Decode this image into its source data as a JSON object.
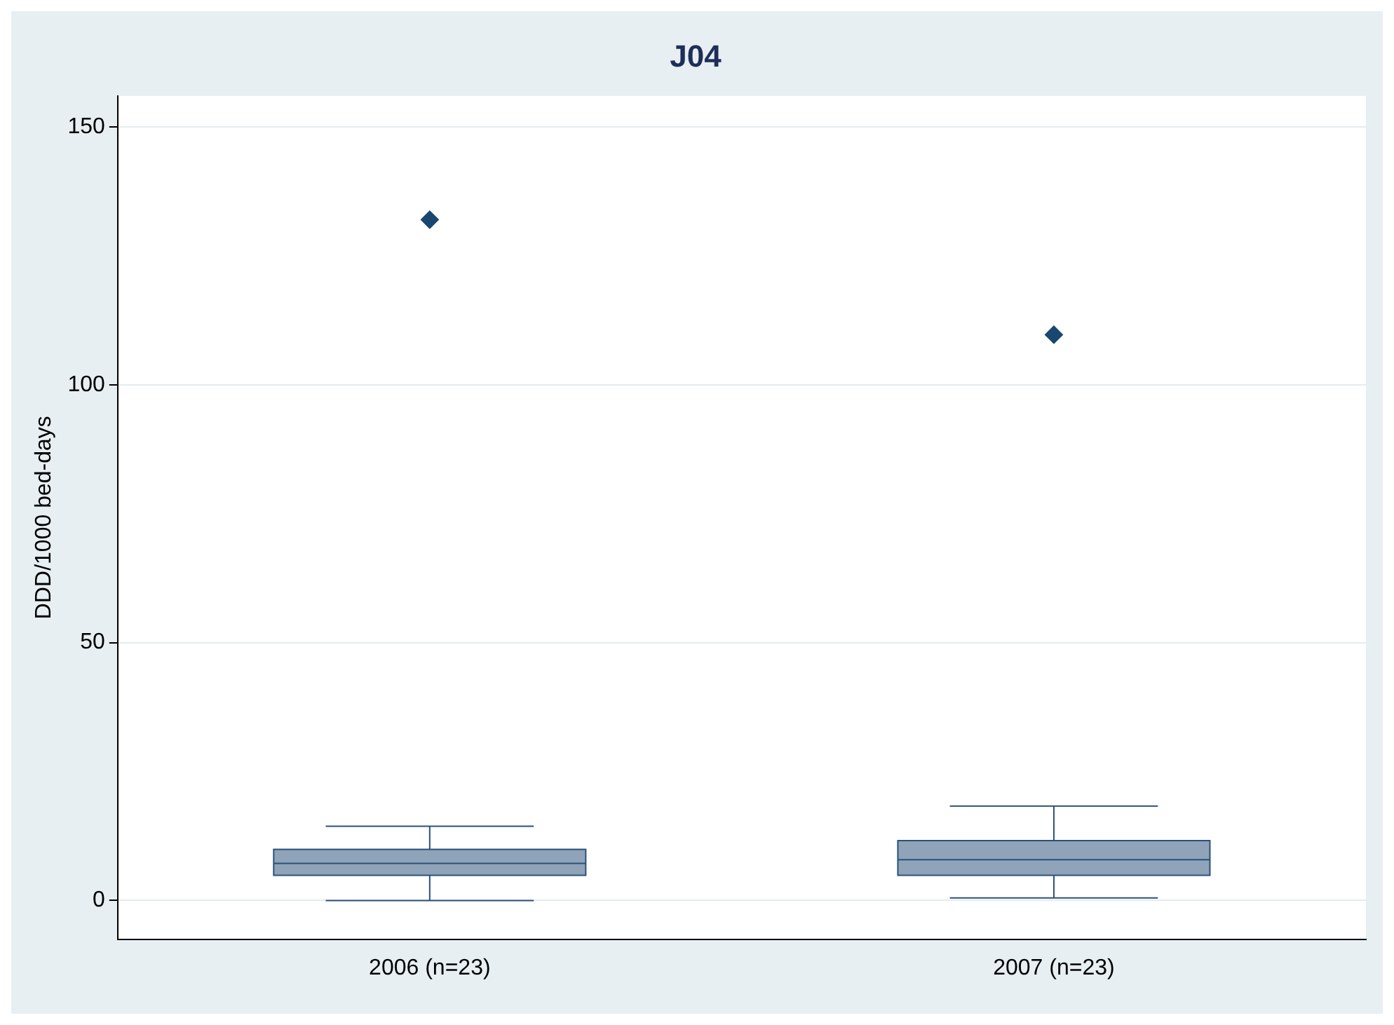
{
  "chart_data": {
    "type": "box",
    "title": "J04",
    "ylabel": "DDD/1000 bed-days",
    "categories": [
      "2006 (n=23)",
      "2007 (n=23)"
    ],
    "boxes": [
      {
        "low": 0,
        "q1": 4.9,
        "median": 7.2,
        "q3": 9.9,
        "high": 14.4,
        "outliers": [
          132
        ]
      },
      {
        "low": 0.5,
        "q1": 4.9,
        "median": 7.9,
        "q3": 11.6,
        "high": 18.3,
        "outliers": [
          109.7
        ]
      }
    ],
    "color": "#8fa4b8",
    "ylim": [
      -7.5,
      156
    ],
    "yticks": [
      0,
      50,
      100,
      150
    ],
    "grid": "y",
    "marker": "diamond",
    "legend": false
  }
}
